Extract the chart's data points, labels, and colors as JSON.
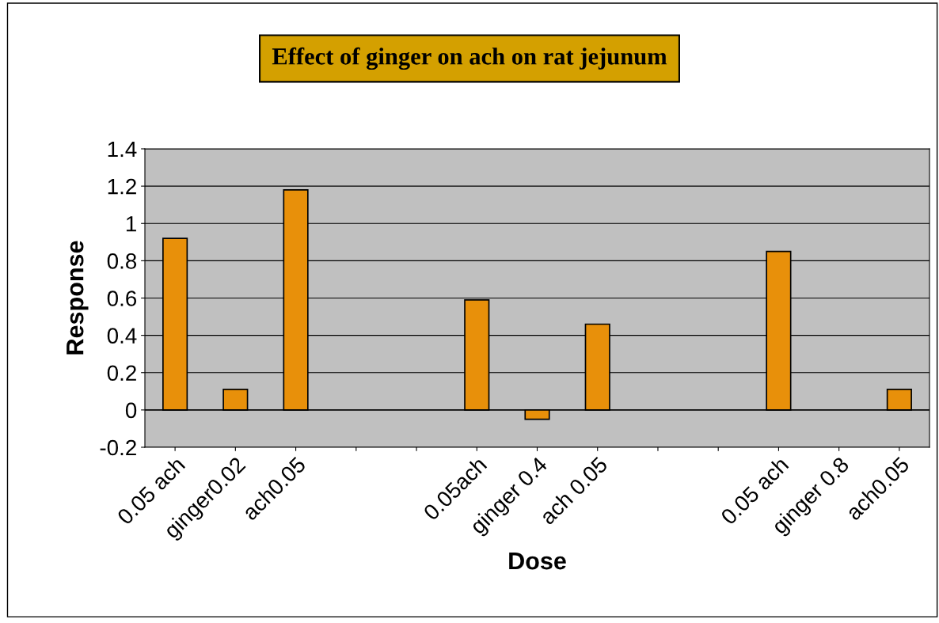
{
  "chart_data": {
    "type": "bar",
    "title": "Effect of ginger on ach on rat jejunum",
    "xlabel": "Dose",
    "ylabel": "Response",
    "categories": [
      "0.05 ach",
      "ginger0.02",
      "ach0.05",
      null,
      null,
      "0.05ach",
      "ginger 0.4",
      "ach 0.05",
      null,
      null,
      "0.05 ach",
      "ginger 0.8",
      "ach0.05"
    ],
    "values": [
      0.92,
      0.11,
      1.18,
      null,
      null,
      0.59,
      -0.05,
      0.46,
      null,
      null,
      0.85,
      null,
      0.11
    ],
    "color": "#e8900a",
    "ylim": [
      -0.2,
      1.4
    ],
    "yticks": [
      -0.2,
      0,
      0.2,
      0.4,
      0.6,
      0.8,
      1,
      1.2,
      1.4
    ],
    "grid": "y"
  }
}
